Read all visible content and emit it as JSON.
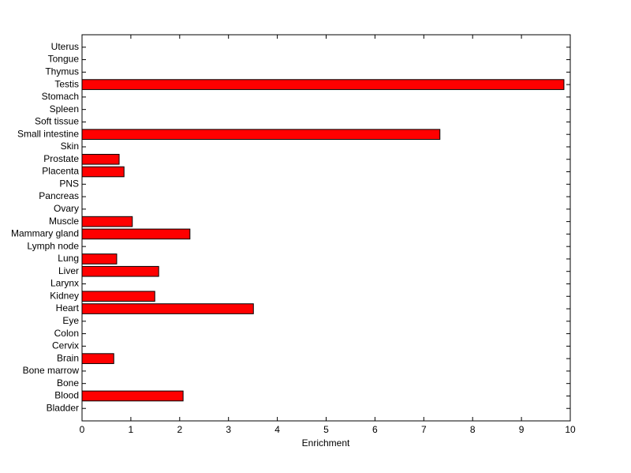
{
  "chart_data": {
    "type": "barh",
    "x_label": "Enrichment",
    "categories": [
      "Bladder",
      "Blood",
      "Bone",
      "Bone marrow",
      "Brain",
      "Cervix",
      "Colon",
      "Eye",
      "Heart",
      "Kidney",
      "Larynx",
      "Liver",
      "Lung",
      "Lymph node",
      "Mammary gland",
      "Muscle",
      "Ovary",
      "Pancreas",
      "PNS",
      "Placenta",
      "Prostate",
      "Skin",
      "Small intestine",
      "Soft tissue",
      "Spleen",
      "Stomach",
      "Testis",
      "Thymus",
      "Tongue",
      "Uterus"
    ],
    "values": [
      0,
      2.07,
      0,
      0,
      0.65,
      0,
      0,
      0,
      3.51,
      1.49,
      0,
      1.57,
      0.71,
      0,
      2.21,
      1.03,
      0,
      0,
      0,
      0.86,
      0.76,
      0,
      7.33,
      0,
      0,
      0,
      9.87,
      0,
      0,
      0
    ],
    "color": "#ff0000",
    "xlim": [
      0,
      10
    ],
    "xticks": [
      0,
      1,
      2,
      3,
      4,
      5,
      6,
      7,
      8,
      9,
      10
    ]
  }
}
